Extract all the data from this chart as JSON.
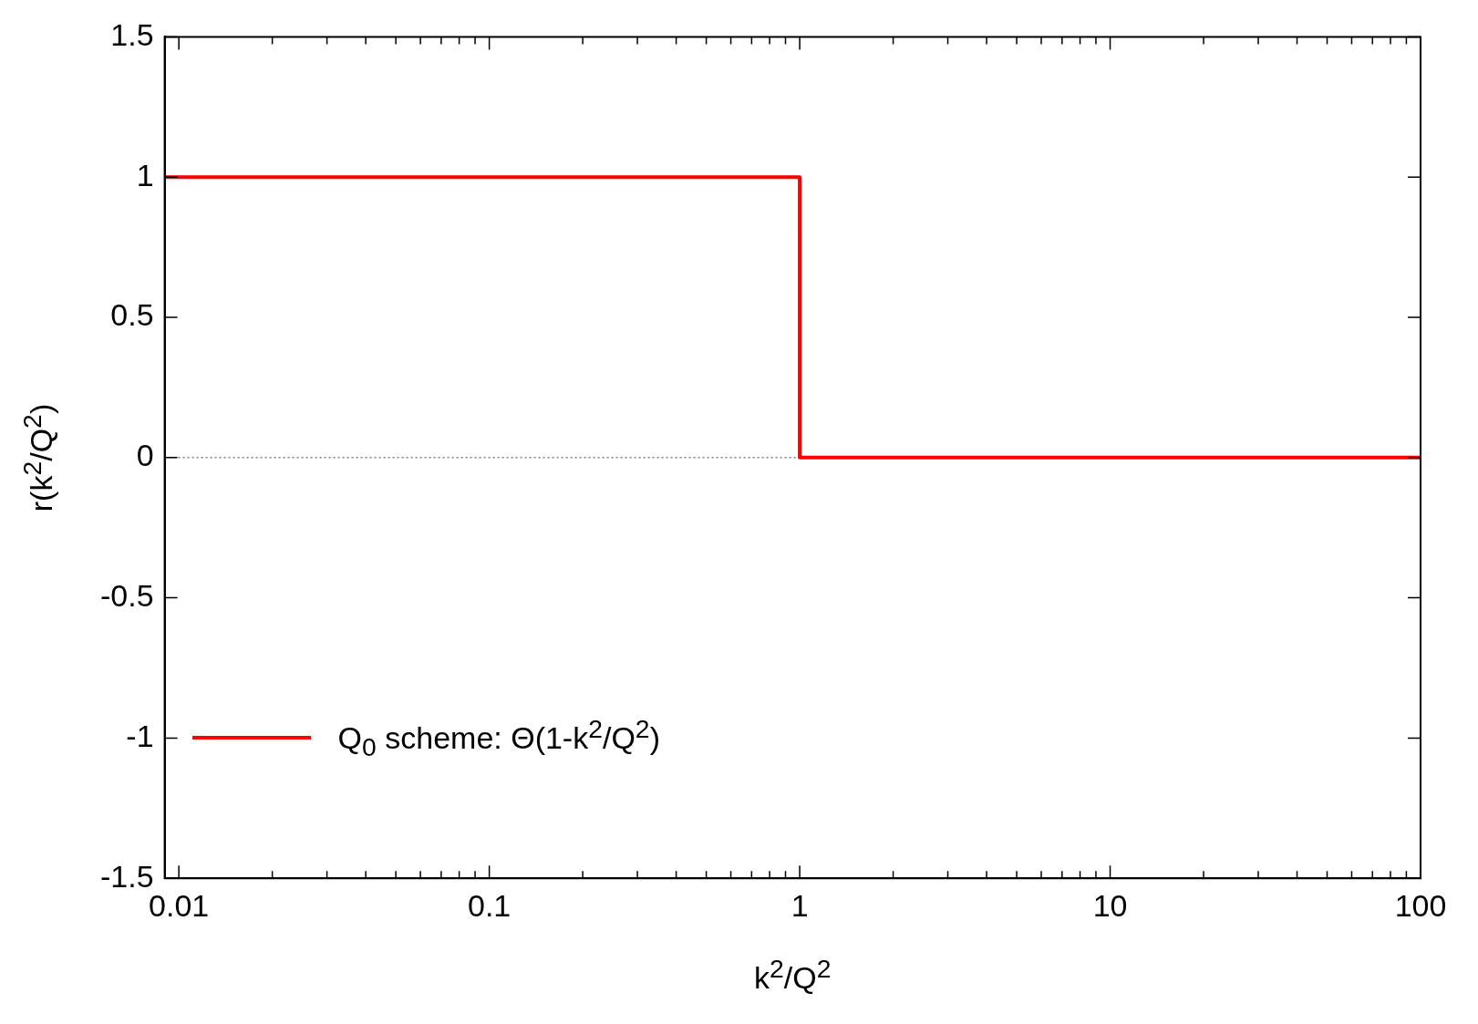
{
  "chart_data": {
    "type": "step",
    "xlabel": "k$^{2}$/Q$^{2}$",
    "ylabel": "r(k$^{2}$/Q$^{2}$)",
    "log": "x",
    "xlim": [
      0.009,
      100
    ],
    "xticks": [
      0.01,
      {
        "value": 0.02,
        "label": null
      },
      {
        "value": 0.03,
        "label": null
      },
      {
        "value": 0.04,
        "label": null
      },
      {
        "value": 0.05,
        "label": null
      },
      {
        "value": 0.06,
        "label": null
      },
      {
        "value": 0.07,
        "label": null
      },
      {
        "value": 0.08,
        "label": null
      },
      {
        "value": 0.09,
        "label": null
      },
      0.1,
      {
        "value": 0.2,
        "label": null
      },
      {
        "value": 0.3,
        "label": null
      },
      {
        "value": 0.4,
        "label": null
      },
      {
        "value": 0.5,
        "label": null
      },
      {
        "value": 0.6,
        "label": null
      },
      {
        "value": 0.7,
        "label": null
      },
      {
        "value": 0.8,
        "label": null
      },
      {
        "value": 0.9,
        "label": null
      },
      1,
      {
        "value": 2,
        "label": null
      },
      {
        "value": 3,
        "label": null
      },
      {
        "value": 4,
        "label": null
      },
      {
        "value": 5,
        "label": null
      },
      {
        "value": 6,
        "label": null
      },
      {
        "value": 7,
        "label": null
      },
      {
        "value": 8,
        "label": null
      },
      {
        "value": 9,
        "label": null
      },
      10,
      {
        "value": 20,
        "label": null
      },
      {
        "value": 30,
        "label": null
      },
      {
        "value": 40,
        "label": null
      },
      {
        "value": 50,
        "label": null
      },
      {
        "value": 60,
        "label": null
      },
      {
        "value": 70,
        "label": null
      },
      {
        "value": 80,
        "label": null
      },
      {
        "value": 90,
        "label": null
      },
      100
    ],
    "ylim": [
      -1.5,
      1.5
    ],
    "yticks": [
      -1.5,
      -1,
      -0.5,
      0,
      0.5,
      1,
      1.5
    ],
    "grid": false,
    "legend": "bottom left",
    "ref_lines": [
      {
        "axis": "y",
        "value": 0,
        "color": "#808080",
        "line_style": "dotted"
      }
    ],
    "series": [
      {
        "name": "Q$_{0}$ scheme: Θ(1-k$^{2}$/Q$^{2}$)",
        "color": "#ff0000",
        "x": [
          0.009,
          1,
          100
        ],
        "values": [
          1,
          0,
          0
        ]
      }
    ]
  }
}
